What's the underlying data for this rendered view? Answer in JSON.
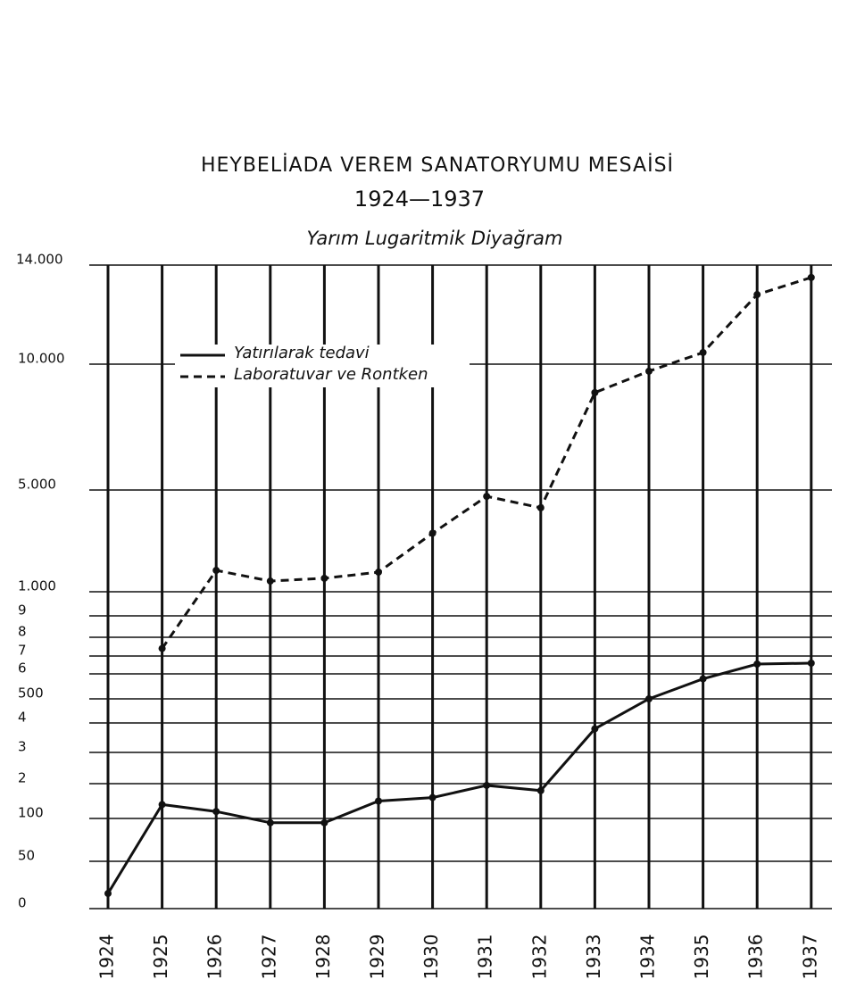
{
  "chart_data": {
    "type": "line",
    "title": "HEYBELİADA VEREM SANATORYUMU MESAİSİ",
    "subtitle": "1924—1937",
    "annotation": "Yarım Lugaritmik Diyağram",
    "categories": [
      "1924",
      "1925",
      "1926",
      "1927",
      "1928",
      "1929",
      "1930",
      "1931",
      "1932",
      "1933",
      "1934",
      "1935",
      "1936",
      "1937"
    ],
    "series": [
      {
        "name": "Yatırılarak tedavi",
        "color": "#111111",
        "linestyle": "solid",
        "values": [
          16,
          140,
          120,
          95,
          95,
          150,
          160,
          195,
          180,
          380,
          500,
          580,
          655,
          660
        ]
      },
      {
        "name": "Laboratuvar ve Rontken",
        "color": "#111111",
        "linestyle": "dashed",
        "values": [
          null,
          740,
          1840,
          1420,
          1530,
          1770,
          3300,
          4750,
          4300,
          8870,
          9720,
          10470,
          12810,
          13500
        ]
      }
    ],
    "ylim": [
      0,
      14000
    ],
    "yticks": [
      0,
      50,
      100,
      {
        "value": 200,
        "label": "2"
      },
      {
        "value": 300,
        "label": "3"
      },
      {
        "value": 400,
        "label": "4"
      },
      500,
      {
        "value": 600,
        "label": "6"
      },
      {
        "value": 700,
        "label": "7"
      },
      {
        "value": 800,
        "label": "8"
      },
      {
        "value": 900,
        "label": "9"
      },
      {
        "value": 1000,
        "label": "1.000"
      },
      {
        "value": 5000,
        "label": "5.000"
      },
      {
        "value": 10000,
        "label": "10.000"
      },
      {
        "value": 14000,
        "label": "14.000"
      }
    ],
    "grid": true
  }
}
